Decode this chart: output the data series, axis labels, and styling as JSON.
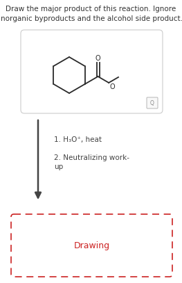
{
  "title_line1": "Draw the major product of this reaction. Ignore",
  "title_line2": "inorganic byproducts and the alcohol side product.",
  "title_fontsize": 7.5,
  "title_color": "#333333",
  "bg_color": "#ffffff",
  "reaction_box_linecolor": "#cccccc",
  "arrow_color": "#444444",
  "step1_text": "1. H₃O⁺, heat",
  "step2_text": "2. Neutralizing work-\nup",
  "steps_fontsize": 7.5,
  "drawing_text": "Drawing",
  "drawing_fontsize": 9,
  "drawing_color": "#cc2222",
  "drawing_box_color": "#cc2222",
  "fig_width": 2.63,
  "fig_height": 4.07,
  "dpi": 100
}
